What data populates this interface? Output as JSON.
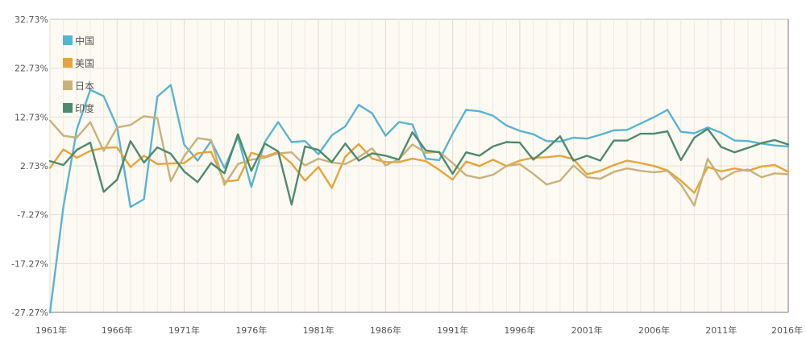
{
  "chart_data": {
    "type": "line",
    "title": "",
    "xlabel": "",
    "ylabel": "",
    "x": [
      1961,
      1962,
      1963,
      1964,
      1965,
      1966,
      1967,
      1968,
      1969,
      1970,
      1971,
      1972,
      1973,
      1974,
      1975,
      1976,
      1977,
      1978,
      1979,
      1980,
      1981,
      1982,
      1983,
      1984,
      1985,
      1986,
      1987,
      1988,
      1989,
      1990,
      1991,
      1992,
      1993,
      1994,
      1995,
      1996,
      1997,
      1998,
      1999,
      2000,
      2001,
      2002,
      2003,
      2004,
      2005,
      2006,
      2007,
      2008,
      2009,
      2010,
      2011,
      2012,
      2013,
      2014,
      2015,
      2016
    ],
    "x_tick_labels": [
      "1961年",
      "1966年",
      "1971年",
      "1976年",
      "1981年",
      "1986年",
      "1991年",
      "1996年",
      "2001年",
      "2006年",
      "2011年",
      "2016年"
    ],
    "x_tick_values": [
      1961,
      1966,
      1971,
      1976,
      1981,
      1986,
      1991,
      1996,
      2001,
      2006,
      2011,
      2016
    ],
    "y_tick_labels": [
      "-27.27%",
      "-17.27%",
      "-7.27%",
      "2.73%",
      "12.73%",
      "22.73%",
      "32.73%"
    ],
    "y_tick_values": [
      -27.27,
      -17.27,
      -7.27,
      2.73,
      12.73,
      22.73,
      32.73
    ],
    "ylim": [
      -27.27,
      32.73
    ],
    "xlim": [
      1961,
      2016
    ],
    "grid": true,
    "legend_position": "top-left",
    "series": [
      {
        "name": "中国",
        "color": "#5ab4d0",
        "values": [
          -27.3,
          -5.6,
          10.2,
          18.3,
          17.0,
          10.7,
          -5.7,
          -4.1,
          16.9,
          19.3,
          7.1,
          3.8,
          7.8,
          2.3,
          8.7,
          -1.6,
          7.6,
          11.7,
          7.6,
          7.8,
          5.1,
          9.0,
          10.8,
          15.2,
          13.5,
          8.9,
          11.7,
          11.2,
          4.2,
          3.9,
          9.3,
          14.2,
          13.9,
          13.0,
          11.0,
          9.9,
          9.2,
          7.8,
          7.7,
          8.5,
          8.3,
          9.1,
          10.0,
          10.1,
          11.4,
          12.7,
          14.2,
          9.7,
          9.4,
          10.6,
          9.5,
          7.9,
          7.8,
          7.3,
          6.9,
          6.7
        ]
      },
      {
        "name": "美国",
        "color": "#e4a53a",
        "values": [
          2.3,
          6.1,
          4.4,
          5.8,
          6.4,
          6.5,
          2.5,
          4.8,
          3.1,
          3.2,
          3.3,
          5.3,
          5.6,
          -0.5,
          -0.2,
          5.4,
          4.6,
          5.6,
          3.2,
          -0.3,
          2.5,
          -1.8,
          4.6,
          7.2,
          4.2,
          3.5,
          3.5,
          4.2,
          3.7,
          1.9,
          -0.1,
          3.6,
          2.7,
          4.0,
          2.7,
          3.8,
          4.4,
          4.5,
          4.8,
          4.1,
          1.0,
          1.7,
          2.9,
          3.8,
          3.3,
          2.7,
          1.8,
          -0.3,
          -2.8,
          2.5,
          1.6,
          2.2,
          1.7,
          2.6,
          2.9,
          1.5
        ]
      },
      {
        "name": "日本",
        "color": "#c8b27a",
        "values": [
          12.0,
          8.9,
          8.5,
          11.7,
          5.8,
          10.6,
          11.1,
          12.9,
          12.5,
          -0.4,
          4.7,
          8.4,
          8.0,
          -1.2,
          3.1,
          4.0,
          4.4,
          5.3,
          5.5,
          2.8,
          4.2,
          3.4,
          3.1,
          4.5,
          6.3,
          2.8,
          4.1,
          7.1,
          5.4,
          5.6,
          3.3,
          0.8,
          0.2,
          0.9,
          2.7,
          3.1,
          1.1,
          -1.1,
          -0.3,
          2.8,
          0.4,
          0.1,
          1.5,
          2.2,
          1.7,
          1.4,
          1.7,
          -1.1,
          -5.4,
          4.2,
          -0.1,
          1.5,
          2.0,
          0.4,
          1.2,
          1.0
        ]
      },
      {
        "name": "印度",
        "color": "#4e8a6e",
        "values": [
          3.7,
          2.9,
          6.0,
          7.5,
          -2.6,
          -0.1,
          7.8,
          3.4,
          6.5,
          5.2,
          1.6,
          -0.6,
          3.3,
          1.2,
          9.2,
          1.7,
          7.3,
          5.7,
          -5.2,
          6.7,
          6.0,
          3.5,
          7.3,
          3.8,
          5.3,
          4.8,
          4.0,
          9.6,
          5.9,
          5.5,
          1.1,
          5.5,
          4.8,
          6.7,
          7.6,
          7.5,
          4.0,
          6.2,
          8.8,
          3.8,
          4.8,
          3.8,
          7.9,
          7.9,
          9.3,
          9.3,
          9.8,
          3.9,
          8.5,
          10.3,
          6.6,
          5.5,
          6.4,
          7.4,
          8.0,
          7.1
        ]
      }
    ]
  }
}
